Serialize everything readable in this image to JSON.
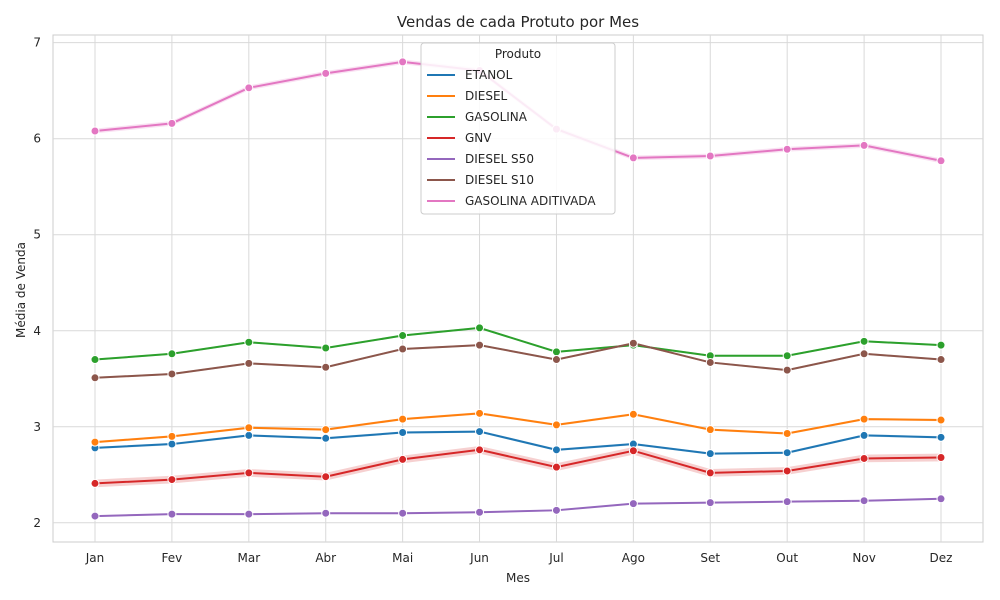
{
  "chart_data": {
    "type": "line",
    "title": "Vendas de cada Protuto por Mes",
    "xlabel": "Mes",
    "ylabel": "Média de Venda",
    "categories": [
      "Jan",
      "Fev",
      "Mar",
      "Abr",
      "Mai",
      "Jun",
      "Jul",
      "Ago",
      "Set",
      "Out",
      "Nov",
      "Dez"
    ],
    "ylim": [
      1.8,
      7.08
    ],
    "yticks": [
      2,
      3,
      4,
      5,
      6,
      7
    ],
    "grid": true,
    "legend_title": "Produto",
    "legend_position": "top-center",
    "series": [
      {
        "name": "ETANOL",
        "color": "#1f77b4",
        "values": [
          2.78,
          2.82,
          2.91,
          2.88,
          2.94,
          2.95,
          2.76,
          2.82,
          2.72,
          2.73,
          2.91,
          2.89
        ],
        "ci": 0.012
      },
      {
        "name": "DIESEL",
        "color": "#ff7f0e",
        "values": [
          2.84,
          2.9,
          2.99,
          2.97,
          3.08,
          3.14,
          3.02,
          3.13,
          2.97,
          2.93,
          3.08,
          3.07
        ],
        "ci": 0.012
      },
      {
        "name": "GASOLINA",
        "color": "#2ca02c",
        "values": [
          3.7,
          3.76,
          3.88,
          3.82,
          3.95,
          4.03,
          3.78,
          3.85,
          3.74,
          3.74,
          3.89,
          3.85
        ],
        "ci": 0.01
      },
      {
        "name": "GNV",
        "color": "#d62728",
        "values": [
          2.41,
          2.45,
          2.52,
          2.48,
          2.66,
          2.76,
          2.58,
          2.75,
          2.52,
          2.54,
          2.67,
          2.68
        ],
        "ci": 0.04
      },
      {
        "name": "DIESEL S50",
        "color": "#9467bd",
        "values": [
          2.07,
          2.09,
          2.09,
          2.1,
          2.1,
          2.11,
          2.13,
          2.2,
          2.21,
          2.22,
          2.23,
          2.25
        ],
        "ci": 0.008
      },
      {
        "name": "DIESEL S10",
        "color": "#8c564b",
        "values": [
          3.51,
          3.55,
          3.66,
          3.62,
          3.81,
          3.85,
          3.7,
          3.87,
          3.67,
          3.59,
          3.76,
          3.7
        ],
        "ci": 0.01
      },
      {
        "name": "GASOLINA ADITIVADA",
        "color": "#e377c2",
        "values": [
          6.08,
          6.16,
          6.53,
          6.68,
          6.8,
          6.71,
          6.1,
          5.8,
          5.82,
          5.89,
          5.93,
          5.77
        ],
        "ci": 0.025
      }
    ]
  }
}
